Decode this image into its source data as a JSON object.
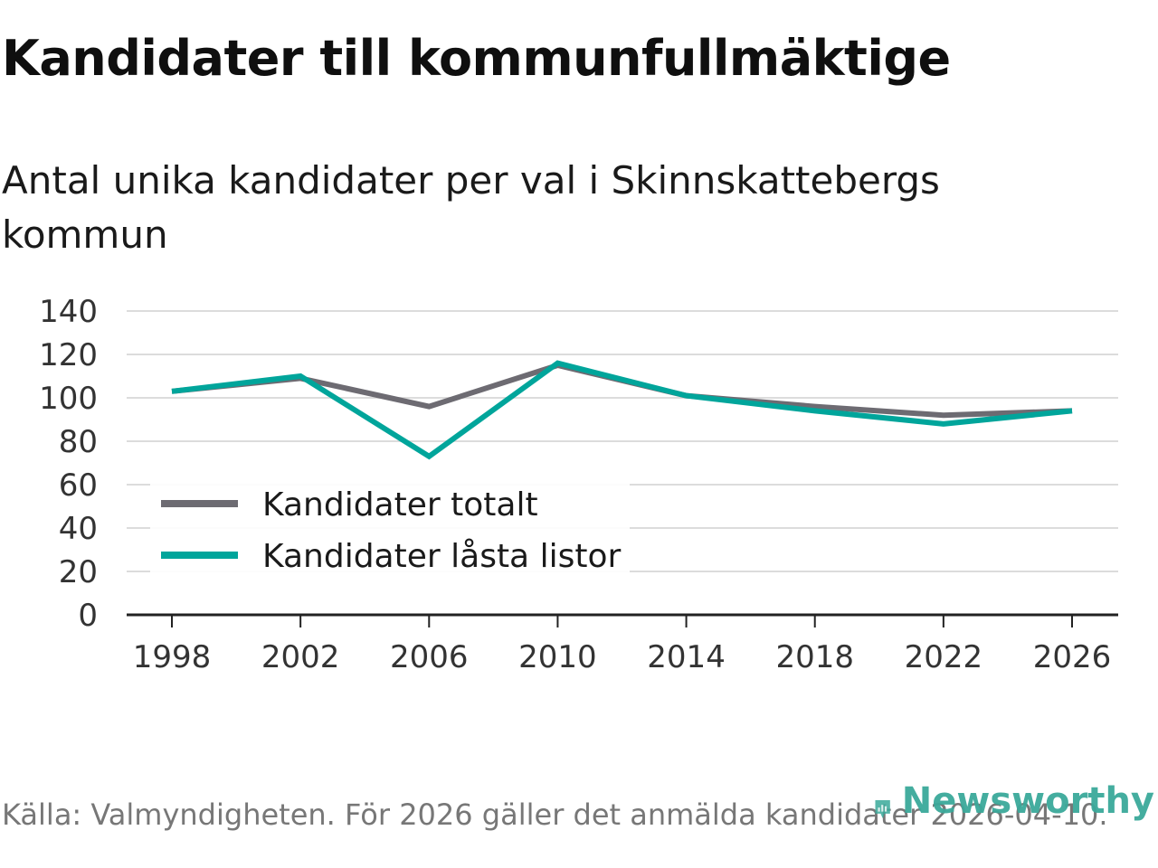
{
  "title": "Kandidater till kommunfullmäktige",
  "subtitle": "Antal unika kandidater per val i Skinnskattebergs kommun",
  "source": "Källa: Valmyndigheten. För 2026 gäller det anmälda kandidater 2026-04-10.",
  "brand": {
    "name": "Newsworthy",
    "icon": "newsworthy-logo-icon",
    "color": "#3aa99a"
  },
  "chart_data": {
    "type": "line",
    "x": [
      1998,
      2002,
      2006,
      2010,
      2014,
      2018,
      2022,
      2026
    ],
    "x_tick_labels": [
      "1998",
      "2002",
      "2006",
      "2010",
      "2014",
      "2018",
      "2022",
      "2026"
    ],
    "y_ticks": [
      0,
      20,
      40,
      60,
      80,
      100,
      120,
      140
    ],
    "y_tick_labels": [
      "0",
      "20",
      "40",
      "60",
      "80",
      "100",
      "120",
      "140"
    ],
    "ylim": [
      0,
      140
    ],
    "grid": true,
    "legend_position": "bottom-left",
    "series": [
      {
        "name": "Kandidater totalt",
        "color": "#6d6b72",
        "values": [
          103,
          109,
          96,
          115,
          101,
          96,
          92,
          94
        ]
      },
      {
        "name": "Kandidater låsta listor",
        "color": "#00a59b",
        "values": [
          103,
          110,
          73,
          116,
          101,
          94,
          88,
          94
        ]
      }
    ]
  }
}
